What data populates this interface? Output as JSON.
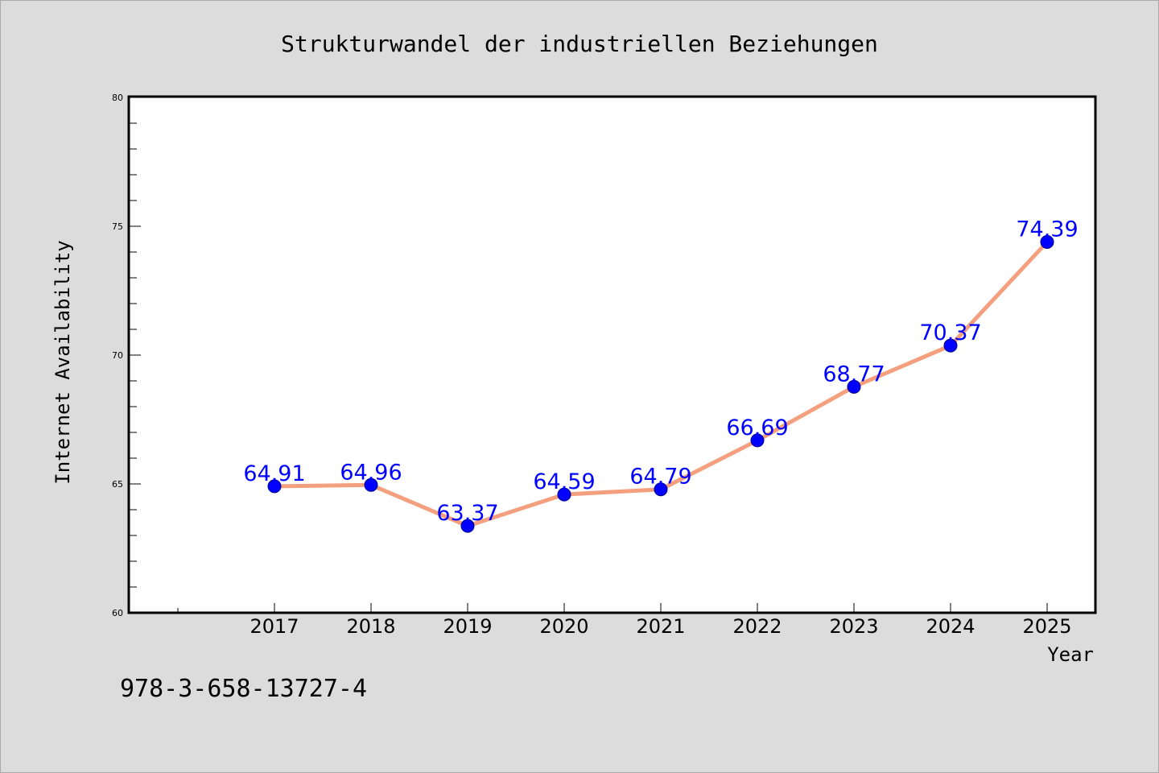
{
  "chart_data": {
    "type": "line",
    "title": "Strukturwandel der industriellen Beziehungen",
    "xlabel": "Year",
    "ylabel": "Internet Availability",
    "categories": [
      "2017",
      "2018",
      "2019",
      "2020",
      "2021",
      "2022",
      "2023",
      "2024",
      "2025"
    ],
    "values": [
      64.91,
      64.96,
      63.37,
      64.59,
      64.79,
      66.69,
      68.77,
      70.37,
      74.39
    ],
    "data_labels": [
      "64.91",
      "64.96",
      "63.37",
      "64.59",
      "64.79",
      "66.69",
      "68.77",
      "70.37",
      "74.39"
    ],
    "ylim": [
      60,
      80
    ],
    "yticks": [
      {
        "value": 60,
        "label": "60"
      },
      {
        "value": 65,
        "label": "65"
      },
      {
        "value": 70,
        "label": "70"
      },
      {
        "value": 75,
        "label": "75"
      },
      {
        "value": 80,
        "label": "80"
      }
    ],
    "grid": false,
    "line_color": "#f4a07e",
    "marker_color": "#0000ff",
    "label_color": "#0000ff",
    "background_color": "#dcdcdc",
    "plot_background_color": "#ffffff"
  },
  "footer": {
    "isbn": "978-3-658-13727-4"
  }
}
